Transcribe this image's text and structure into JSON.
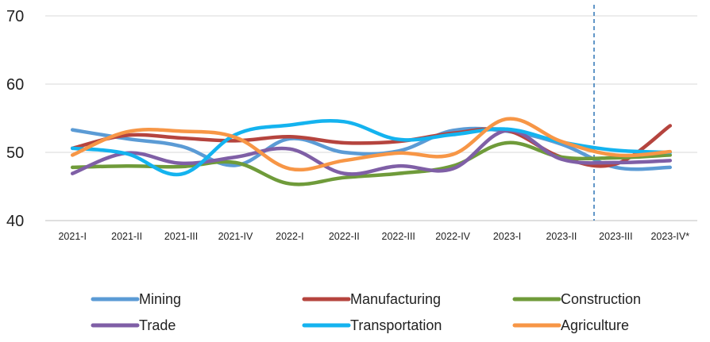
{
  "chart_data": {
    "type": "line",
    "title": "",
    "xlabel": "",
    "ylabel": "",
    "ylim": [
      40,
      70
    ],
    "yticks": [
      40,
      50,
      60,
      70
    ],
    "categories": [
      "2021-I",
      "2021-II",
      "2021-III",
      "2021-IV",
      "2022-I",
      "2022-II",
      "2022-III",
      "2022-IV",
      "2023-I",
      "2023-II",
      "2023-III",
      "2023-IV*"
    ],
    "grid": "horizontal",
    "legend_position": "bottom",
    "forecast_divider_at": "2023-III",
    "series": [
      {
        "name": "Mining",
        "color": "#5b9bd5",
        "values": [
          53.3,
          52.0,
          50.9,
          48.1,
          52.0,
          50.0,
          50.2,
          53.2,
          53.1,
          51.2,
          47.8,
          47.8
        ]
      },
      {
        "name": "Manufacturing",
        "color": "#b5443e",
        "values": [
          50.6,
          52.5,
          52.1,
          51.7,
          52.3,
          51.4,
          51.6,
          52.8,
          53.2,
          49.3,
          48.3,
          53.9
        ]
      },
      {
        "name": "Construction",
        "color": "#6f9b3a",
        "values": [
          47.8,
          48.0,
          47.9,
          48.5,
          45.4,
          46.3,
          46.9,
          48.0,
          51.4,
          49.3,
          49.2,
          49.6
        ]
      },
      {
        "name": "Trade",
        "color": "#7f5fa6",
        "values": [
          46.9,
          49.9,
          48.4,
          49.3,
          50.5,
          46.9,
          48.0,
          47.6,
          53.2,
          49.0,
          48.5,
          48.8
        ]
      },
      {
        "name": "Transportation",
        "color": "#14b3ef",
        "values": [
          50.6,
          49.8,
          46.8,
          52.6,
          54.0,
          54.5,
          51.9,
          52.6,
          53.4,
          51.5,
          50.3,
          50.0
        ]
      },
      {
        "name": "Agriculture",
        "color": "#f79646",
        "values": [
          49.6,
          53.0,
          53.1,
          52.2,
          47.6,
          48.8,
          49.9,
          49.7,
          54.9,
          51.6,
          49.6,
          50.1
        ]
      }
    ]
  }
}
